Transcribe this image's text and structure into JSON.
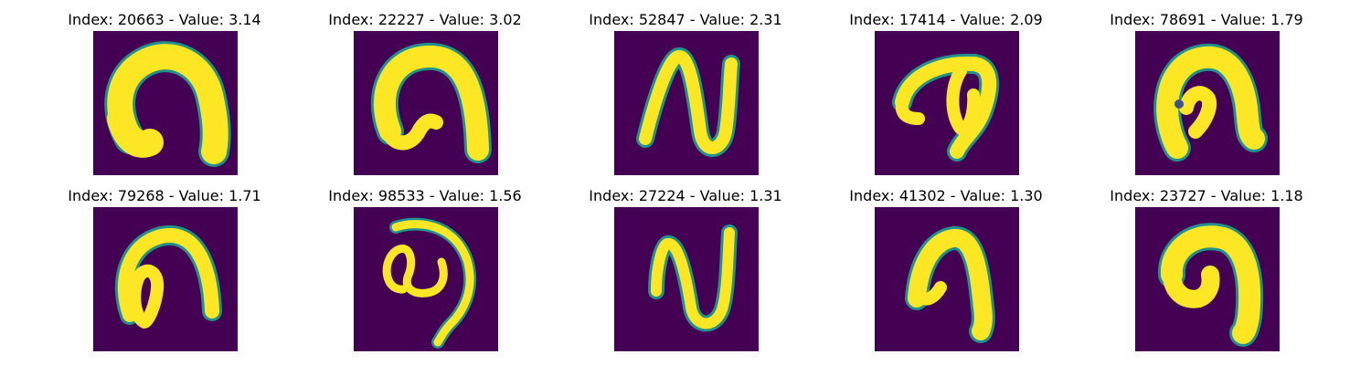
{
  "figure": {
    "colors": {
      "background": "#440154",
      "stroke": "#fde725",
      "mid": "#21918c",
      "low": "#3b528b"
    },
    "panels": [
      {
        "title": "Index: 20663 - Value: 3.14",
        "glyph": "arch-thick"
      },
      {
        "title": "Index: 22227 - Value: 3.02",
        "glyph": "arch-hook"
      },
      {
        "title": "Index: 52847 - Value: 2.31",
        "glyph": "n-zigzag"
      },
      {
        "title": "Index: 17414 - Value: 2.09",
        "glyph": "loop-p"
      },
      {
        "title": "Index: 78691 - Value: 1.79",
        "glyph": "arch-inner-loop"
      },
      {
        "title": "Index: 79268 - Value: 1.71",
        "glyph": "arch-loop"
      },
      {
        "title": "Index: 98533 - Value: 1.56",
        "glyph": "loop-tail"
      },
      {
        "title": "Index: 27224 - Value: 1.31",
        "glyph": "n-zigzag-thin"
      },
      {
        "title": "Index: 41302 - Value: 1.30",
        "glyph": "arch-narrow"
      },
      {
        "title": "Index: 23727 - Value: 1.18",
        "glyph": "arch-thick-2"
      }
    ]
  }
}
